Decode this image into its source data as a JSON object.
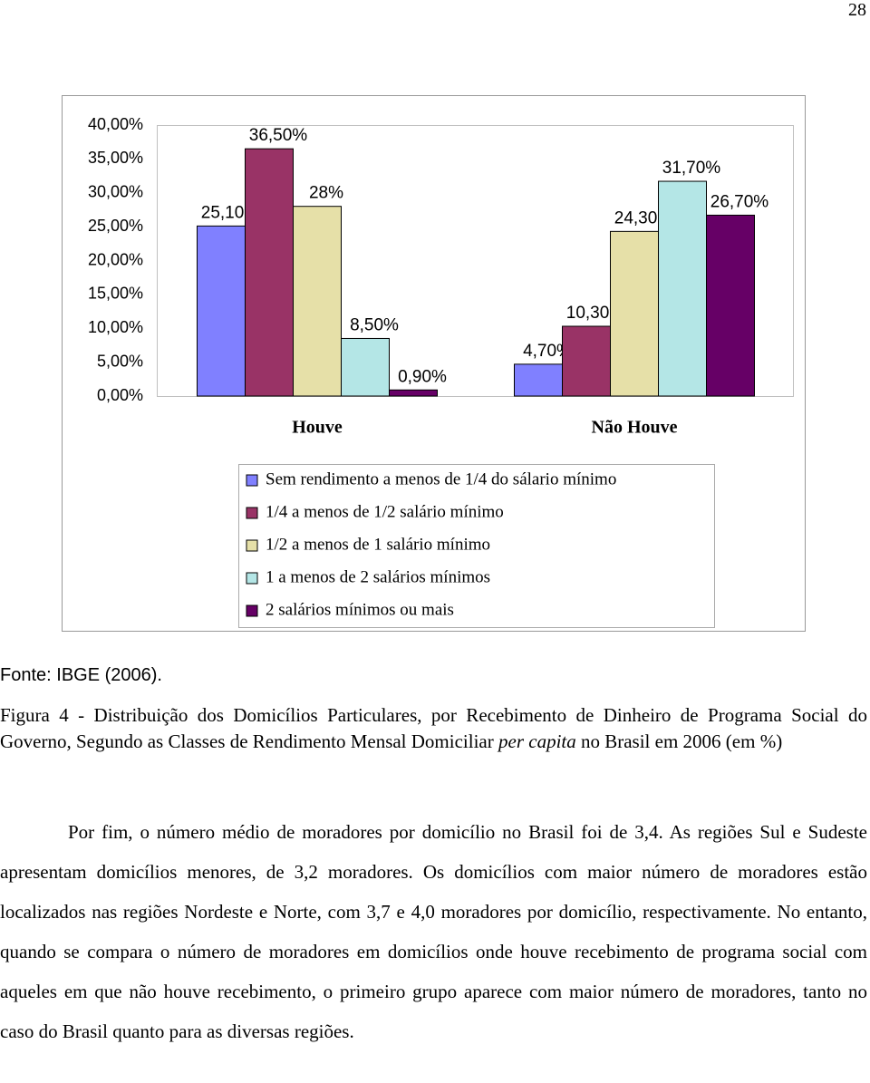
{
  "page_number": "28",
  "chart_data": {
    "type": "bar",
    "categories": [
      "Houve",
      "Não Houve"
    ],
    "series": [
      {
        "name": "Sem rendimento a menos de 1/4 do sálario mínimo",
        "color": "#8080ff",
        "values": [
          25.1,
          4.7
        ],
        "value_labels": [
          "25,10%",
          "4,70%"
        ]
      },
      {
        "name": "1/4 a menos de 1/2 salário mínimo",
        "color": "#993366",
        "values": [
          36.5,
          10.3
        ],
        "value_labels": [
          "36,50%",
          "10,30%"
        ]
      },
      {
        "name": "1/2 a menos de 1 salário mínimo",
        "color": "#e6e0a8",
        "values": [
          28,
          24.3
        ],
        "value_labels": [
          "28%",
          "24,30%"
        ]
      },
      {
        "name": "1 a menos de 2 salários mínimos",
        "color": "#b4e6e6",
        "values": [
          8.5,
          31.7
        ],
        "value_labels": [
          "8,50%",
          "31,70%"
        ]
      },
      {
        "name": "2 salários mínimos ou mais",
        "color": "#660066",
        "values": [
          0.9,
          26.7
        ],
        "value_labels": [
          "0,90%",
          "26,70%"
        ]
      }
    ],
    "ylim": [
      0,
      40
    ],
    "yticks": [
      {
        "value": 0,
        "label": "0,00%"
      },
      {
        "value": 5,
        "label": "5,00%"
      },
      {
        "value": 10,
        "label": "10,00%"
      },
      {
        "value": 15,
        "label": "15,00%"
      },
      {
        "value": 20,
        "label": "20,00%"
      },
      {
        "value": 25,
        "label": "25,00%"
      },
      {
        "value": 30,
        "label": "30,00%"
      },
      {
        "value": 35,
        "label": "35,00%"
      },
      {
        "value": 40,
        "label": "40,00%"
      }
    ],
    "grid": false
  },
  "source": "Fonte: IBGE (2006).",
  "caption": [
    "Figura 4 - Distribuição dos Domicílios Particulares, por Recebimento de Dinheiro de Programa Social do Governo, Segundo as Classes de Rendimento Mensal Domiciliar ",
    "per capita",
    " no Brasil em 2006 (em %)"
  ],
  "paragraph": "Por fim, o número médio de moradores por domicílio no Brasil foi de 3,4. As regiões Sul e Sudeste apresentam domicílios menores, de 3,2 moradores. Os domicílios com maior número de moradores estão localizados nas regiões Nordeste e Norte, com 3,7 e 4,0 moradores por domicílio, respectivamente. No entanto, quando se compara o número de moradores em domicílios onde houve recebimento de programa social com aqueles em que não houve recebimento, o primeiro grupo aparece com maior número de moradores, tanto no caso do Brasil quanto para as diversas regiões."
}
